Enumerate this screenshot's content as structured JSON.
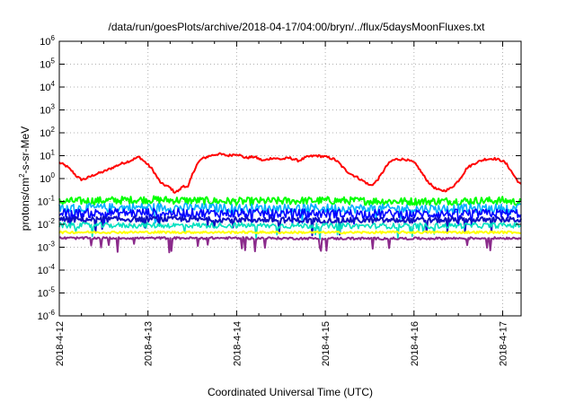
{
  "chart_data": {
    "type": "line",
    "title": "/data/run/goesPlots/archive/2018-04-17/04:00/bryn/../flux/5daysMoonFluxes.txt",
    "xlabel": "Coordinated Universal Time (UTC)",
    "ylabel": "protons/cm2-s-sr-MeV",
    "ylabel_parts": [
      "protons/cm",
      "2",
      "-s-sr-MeV"
    ],
    "yscale": "log",
    "ylim": [
      1e-06,
      1000000.0
    ],
    "y_ticks": [
      {
        "exp": "-6",
        "value": 1e-06
      },
      {
        "exp": "-5",
        "value": 1e-05
      },
      {
        "exp": "-4",
        "value": 0.0001
      },
      {
        "exp": "-3",
        "value": 0.001
      },
      {
        "exp": "-2",
        "value": 0.01
      },
      {
        "exp": "-1",
        "value": 0.1
      },
      {
        "exp": "0",
        "value": 1
      },
      {
        "exp": "1",
        "value": 10
      },
      {
        "exp": "2",
        "value": 100
      },
      {
        "exp": "3",
        "value": 1000
      },
      {
        "exp": "4",
        "value": 10000
      },
      {
        "exp": "5",
        "value": 100000
      },
      {
        "exp": "6",
        "value": 1000000
      }
    ],
    "xlim": [
      "2018-04-12",
      "2018-04-17T05:00"
    ],
    "x_ticks": [
      {
        "label": "2018-4-12",
        "day": 0
      },
      {
        "label": "2018-4-13",
        "day": 1
      },
      {
        "label": "2018-4-14",
        "day": 2
      },
      {
        "label": "2018-4-15",
        "day": 3
      },
      {
        "label": "2018-4-16",
        "day": 4
      },
      {
        "label": "2018-4-17",
        "day": 5
      }
    ],
    "grid": true,
    "series": [
      {
        "color": "#ff0000",
        "width": 2,
        "noise": 0.05,
        "spikes": false,
        "points": [
          [
            0,
            5
          ],
          [
            0.08,
            3.5
          ],
          [
            0.15,
            2
          ],
          [
            0.2,
            1.2
          ],
          [
            0.25,
            0.9
          ],
          [
            0.3,
            1.0
          ],
          [
            0.4,
            1.5
          ],
          [
            0.5,
            2
          ],
          [
            0.6,
            3
          ],
          [
            0.7,
            4.5
          ],
          [
            0.8,
            6
          ],
          [
            0.9,
            9
          ],
          [
            0.95,
            6
          ],
          [
            1.0,
            4
          ],
          [
            1.05,
            2.5
          ],
          [
            1.1,
            1.2
          ],
          [
            1.15,
            0.6
          ],
          [
            1.2,
            0.5
          ],
          [
            1.25,
            0.4
          ],
          [
            1.3,
            0.25
          ],
          [
            1.35,
            0.3
          ],
          [
            1.4,
            0.5
          ],
          [
            1.45,
            0.4
          ],
          [
            1.5,
            1.5
          ],
          [
            1.55,
            4
          ],
          [
            1.6,
            7
          ],
          [
            1.7,
            10
          ],
          [
            1.8,
            12
          ],
          [
            1.9,
            10
          ],
          [
            2.0,
            12
          ],
          [
            2.1,
            8
          ],
          [
            2.2,
            9
          ],
          [
            2.3,
            6
          ],
          [
            2.4,
            8
          ],
          [
            2.5,
            7
          ],
          [
            2.6,
            8
          ],
          [
            2.7,
            6
          ],
          [
            2.8,
            9
          ],
          [
            2.9,
            10
          ],
          [
            3.0,
            9
          ],
          [
            3.1,
            7
          ],
          [
            3.15,
            5
          ],
          [
            3.2,
            3
          ],
          [
            3.25,
            2
          ],
          [
            3.3,
            1.5
          ],
          [
            3.35,
            1.2
          ],
          [
            3.4,
            0.9
          ],
          [
            3.45,
            0.7
          ],
          [
            3.5,
            0.5
          ],
          [
            3.55,
            0.6
          ],
          [
            3.6,
            1
          ],
          [
            3.65,
            2
          ],
          [
            3.7,
            4
          ],
          [
            3.75,
            6
          ],
          [
            3.8,
            7
          ],
          [
            3.9,
            7
          ],
          [
            4.0,
            5
          ],
          [
            4.05,
            3
          ],
          [
            4.1,
            1.5
          ],
          [
            4.15,
            0.8
          ],
          [
            4.2,
            0.5
          ],
          [
            4.25,
            0.35
          ],
          [
            4.3,
            0.3
          ],
          [
            4.35,
            0.3
          ],
          [
            4.4,
            0.35
          ],
          [
            4.45,
            0.5
          ],
          [
            4.5,
            0.8
          ],
          [
            4.55,
            1.5
          ],
          [
            4.6,
            3
          ],
          [
            4.7,
            5
          ],
          [
            4.8,
            7
          ],
          [
            4.9,
            7.5
          ],
          [
            5.0,
            6
          ],
          [
            5.05,
            4
          ],
          [
            5.1,
            2
          ],
          [
            5.15,
            1
          ],
          [
            5.2,
            0.55
          ]
        ]
      },
      {
        "color": "#00ff00",
        "width": 2,
        "noise": 0.17,
        "spikes": false,
        "points": [
          [
            0,
            0.1
          ],
          [
            1,
            0.12
          ],
          [
            2,
            0.1
          ],
          [
            3,
            0.11
          ],
          [
            4,
            0.1
          ],
          [
            5,
            0.11
          ],
          [
            5.2,
            0.09
          ]
        ]
      },
      {
        "color": "#00b0ff",
        "width": 1.6,
        "noise": 0.2,
        "spikes": true,
        "points": [
          [
            0,
            0.05
          ],
          [
            1,
            0.055
          ],
          [
            2,
            0.05
          ],
          [
            3,
            0.05
          ],
          [
            4,
            0.048
          ],
          [
            5,
            0.05
          ],
          [
            5.2,
            0.05
          ]
        ]
      },
      {
        "color": "#0000ff",
        "width": 1.6,
        "noise": 0.2,
        "spikes": true,
        "points": [
          [
            0,
            0.03
          ],
          [
            1,
            0.032
          ],
          [
            2,
            0.03
          ],
          [
            3,
            0.03
          ],
          [
            4,
            0.028
          ],
          [
            5,
            0.03
          ],
          [
            5.2,
            0.03
          ]
        ]
      },
      {
        "color": "#1010c0",
        "width": 2,
        "noise": 0.12,
        "spikes": true,
        "points": [
          [
            0,
            0.016
          ],
          [
            1,
            0.017
          ],
          [
            2,
            0.016
          ],
          [
            3,
            0.015
          ],
          [
            4,
            0.015
          ],
          [
            5,
            0.016
          ],
          [
            5.2,
            0.016
          ]
        ]
      },
      {
        "color": "#00e0c0",
        "width": 1.6,
        "noise": 0.12,
        "spikes": true,
        "points": [
          [
            0,
            0.009
          ],
          [
            1,
            0.009
          ],
          [
            2,
            0.009
          ],
          [
            3,
            0.0085
          ],
          [
            4,
            0.0085
          ],
          [
            5,
            0.009
          ],
          [
            5.2,
            0.009
          ]
        ]
      },
      {
        "color": "#ffff00",
        "width": 2,
        "noise": 0.05,
        "spikes": false,
        "points": [
          [
            0,
            0.0045
          ],
          [
            1,
            0.0045
          ],
          [
            2,
            0.0045
          ],
          [
            3,
            0.0044
          ],
          [
            4,
            0.0045
          ],
          [
            5,
            0.0045
          ],
          [
            5.2,
            0.0045
          ]
        ]
      },
      {
        "color": "#8b2a8b",
        "width": 2,
        "noise": 0.05,
        "spikes": true,
        "points": [
          [
            0,
            0.0025
          ],
          [
            1,
            0.0025
          ],
          [
            2,
            0.0025
          ],
          [
            3,
            0.0024
          ],
          [
            4,
            0.0024
          ],
          [
            5,
            0.0025
          ],
          [
            5.2,
            0.0025
          ]
        ]
      }
    ]
  }
}
